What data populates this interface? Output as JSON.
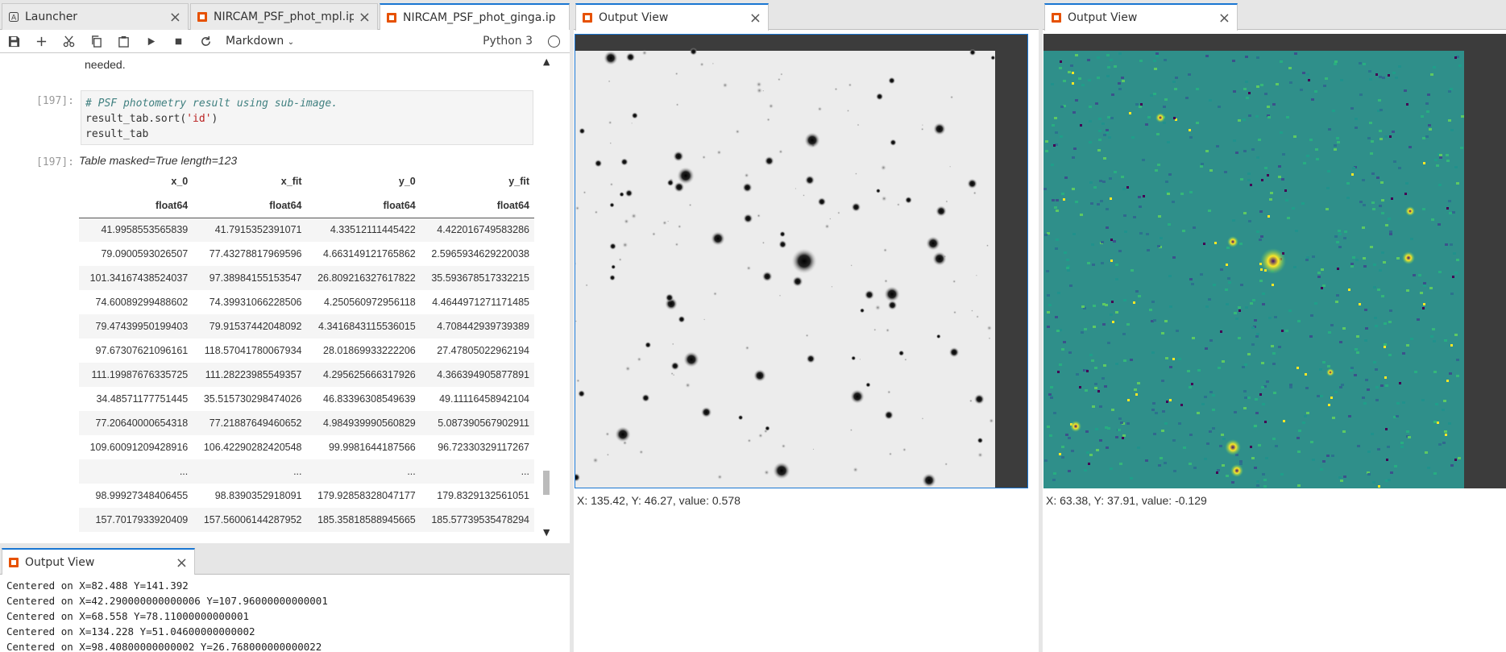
{
  "notebook": {
    "tabs": [
      {
        "label": "Launcher"
      },
      {
        "label": "NIRCAM_PSF_phot_mpl.ipy"
      },
      {
        "label": "NIRCAM_PSF_phot_ginga.ip"
      }
    ],
    "toolbar": {
      "cell_type": "Markdown",
      "kernel": "Python 3"
    },
    "cells": {
      "prev_text": "needed.",
      "in_prompt": "[197]:",
      "code_comment": "# PSF photometry result using sub-image.",
      "code_line2_a": "result_tab.sort(",
      "code_line2_str": "'id'",
      "code_line2_b": ")",
      "code_line3": "result_tab",
      "out_prompt": "[197]:",
      "table_caption": "Table masked=True length=123"
    },
    "table": {
      "columns": [
        "x_0",
        "x_fit",
        "y_0",
        "y_fit"
      ],
      "dtypes": [
        "float64",
        "float64",
        "float64",
        "float64"
      ],
      "rows": [
        [
          "41.9958553565839",
          "41.7915352391071",
          "4.33512111445422",
          "4.422016749583286"
        ],
        [
          "79.0900593026507",
          "77.43278817969596",
          "4.663149121765862",
          "2.5965934629220038"
        ],
        [
          "101.34167438524037",
          "97.38984155153547",
          "26.809216327617822",
          "35.5936785173322​15"
        ],
        [
          "74.60089299488602",
          "74.39931066228506",
          "4.250560972956118",
          "4.4644971271171485"
        ],
        [
          "79.47439950199403",
          "79.91537442048092",
          "4.3416843115536015",
          "4.708442939739389"
        ],
        [
          "97.67307621096161",
          "118.57041780067934",
          "28.01869933222206",
          "27.47805022962194"
        ],
        [
          "111.19987676335725",
          "111.28223985549357",
          "4.295625666317926",
          "4.366394905877891"
        ],
        [
          "34.48571177751445",
          "35.515730298474026",
          "46.83396308549639",
          "49.11116458942104"
        ],
        [
          "77.20640000654318",
          "77.21887649460652",
          "4.984939990560829",
          "5.087390567902911"
        ],
        [
          "109.60091209428916",
          "106.42290282420548",
          "99.9981644187566",
          "96.72330329117267"
        ],
        [
          "...",
          "...",
          "...",
          "..."
        ],
        [
          "98.99927348406455",
          "98.8390352918091",
          "179.92858328047177",
          "179.8329132561051"
        ],
        [
          "157.7017933920409",
          "157.56006144287952",
          "185.35818588945665",
          "185.57739535478294"
        ]
      ]
    },
    "output_panel": {
      "tab_label": "Output View",
      "lines": [
        "Centered on X=82.488 Y=141.392",
        "Centered on X=42.290000000000006 Y=107.96000000000001",
        "Centered on X=68.558 Y=78.11000000000001",
        "Centered on X=134.228 Y=51.04600000000002",
        "Centered on X=98.40800000000002 Y=26.768000000000022"
      ]
    }
  },
  "viewer1": {
    "tab_label": "Output View",
    "status": "X: 135.42, Y: 46.27, value: 0.578"
  },
  "viewer2": {
    "tab_label": "Output View",
    "status": "X: 63.38, Y: 37.91, value: -0.129"
  },
  "colors": {
    "accent": "#1976d2",
    "tab_icon": "#e65100",
    "viridis_bg": "#2f8f8a"
  }
}
